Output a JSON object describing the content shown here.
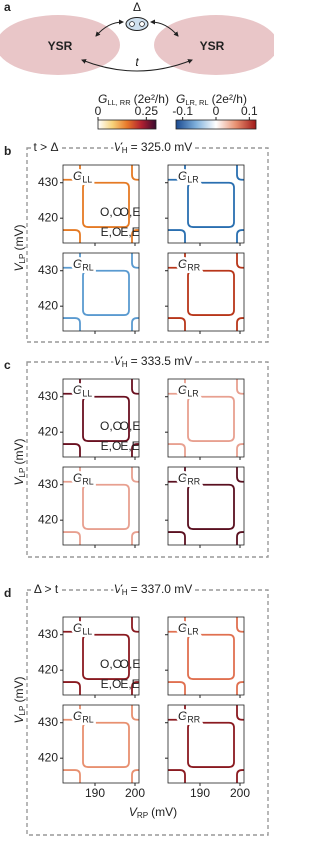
{
  "panel_labels": [
    "a",
    "b",
    "c",
    "d"
  ],
  "schematic": {
    "left": "YSR",
    "right": "YSR",
    "delta": "Δ",
    "t": "t"
  },
  "colorbars": [
    {
      "symbol": "G",
      "sub": "LL, RR",
      "unit": "(2e²/h)",
      "lim": [
        0,
        0.3
      ],
      "ticks": [
        0,
        0.25
      ],
      "colors": [
        "#ffffff",
        "#f7d27a",
        "#e8782a",
        "#b02030",
        "#3a0a30"
      ]
    },
    {
      "symbol": "G",
      "sub": "LR, RL",
      "unit": "(2e²/h)",
      "lim": [
        -0.12,
        0.12
      ],
      "ticks": [
        -0.1,
        0,
        0.1
      ],
      "colors": [
        "#1a4a90",
        "#7fb0dc",
        "#ffffff",
        "#e89070",
        "#a01818"
      ]
    }
  ],
  "axes": {
    "ylabel": {
      "symbol": "V",
      "sub": "LP",
      "unit": "(mV)"
    },
    "xlabel": {
      "symbol": "V",
      "sub": "RP",
      "unit": "(mV)"
    },
    "xlim": [
      182,
      201
    ],
    "ylim": [
      413,
      435
    ],
    "xticks": [
      190,
      200
    ],
    "yticks": [
      420,
      430
    ]
  },
  "panels": [
    {
      "regime": "t > Δ",
      "vh": {
        "symbol": "V",
        "sub": "H",
        "text": "= 325.0 mV"
      },
      "states": [
        "O,O",
        "O,E",
        "E,O",
        "E,E"
      ],
      "plots": [
        {
          "symbol": "G",
          "sub": "LL",
          "color": "#e57a24"
        },
        {
          "symbol": "G",
          "sub": "LR",
          "color": "#2a6fb0"
        },
        {
          "symbol": "G",
          "sub": "RL",
          "color": "#5a9ad0"
        },
        {
          "symbol": "G",
          "sub": "RR",
          "color": "#b8361a"
        }
      ]
    },
    {
      "vh": {
        "symbol": "V",
        "sub": "H",
        "text": "= 333.5 mV"
      },
      "states": [
        "O,O",
        "O,E",
        "E,O",
        "E,E"
      ],
      "plots": [
        {
          "symbol": "G",
          "sub": "LL",
          "color": "#6a1020"
        },
        {
          "symbol": "G",
          "sub": "LR",
          "color": "#e8a090"
        },
        {
          "symbol": "G",
          "sub": "RL",
          "color": "#e8a090"
        },
        {
          "symbol": "G",
          "sub": "RR",
          "color": "#5a1020"
        }
      ]
    },
    {
      "regime": "Δ > t",
      "vh": {
        "symbol": "V",
        "sub": "H",
        "text": "= 337.0 mV"
      },
      "states": [
        "O,O",
        "O,E",
        "E,O",
        "E,E"
      ],
      "plots": [
        {
          "symbol": "G",
          "sub": "LL",
          "color": "#8a1a20"
        },
        {
          "symbol": "G",
          "sub": "LR",
          "color": "#e07050"
        },
        {
          "symbol": "G",
          "sub": "RL",
          "color": "#e89070"
        },
        {
          "symbol": "G",
          "sub": "RR",
          "color": "#8a1a20"
        }
      ]
    }
  ]
}
